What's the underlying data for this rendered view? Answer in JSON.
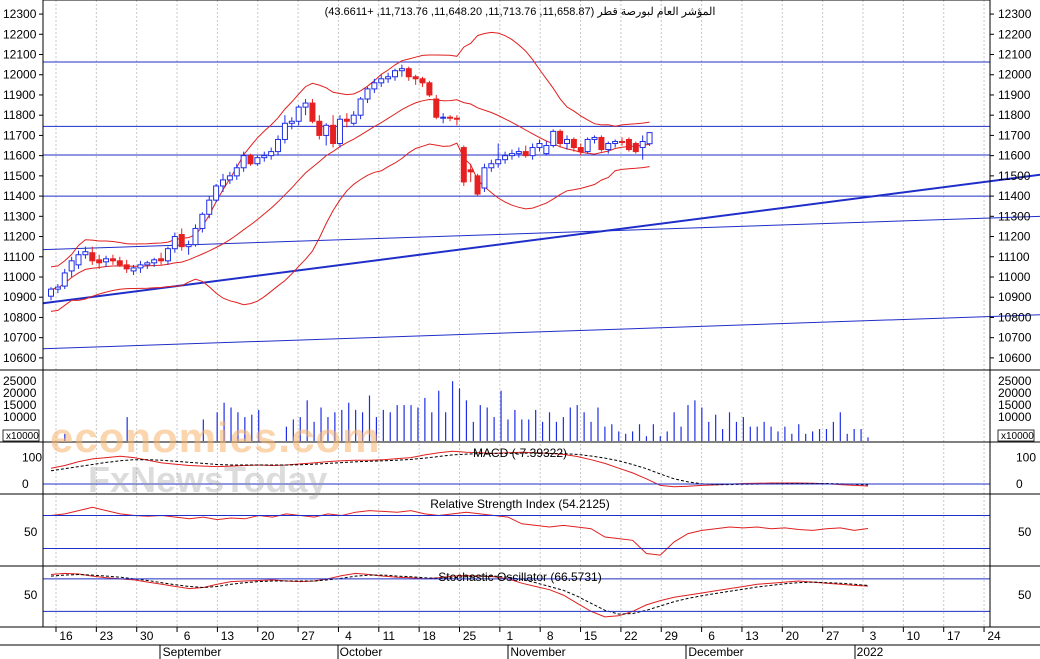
{
  "chart_data": {
    "type": "candlestick",
    "title": "المؤشر العام لبورصة قطر",
    "ohlc_readout": "(11,658.87, 11,713.76, 11,648.20, 11,713.76, +43.6611)",
    "price_axis": {
      "range": [
        10550,
        12330
      ],
      "ticks": [
        "12300",
        "12200",
        "12100",
        "12000",
        "11900",
        "11800",
        "11700",
        "11600",
        "11500",
        "11400",
        "11300",
        "11200",
        "11100",
        "11000",
        "10900",
        "10800",
        "10700",
        "10600"
      ]
    },
    "x_axis": {
      "day_labels": [
        "16",
        "23",
        "30",
        "6",
        "13",
        "20",
        "27",
        "4",
        "11",
        "18",
        "25",
        "1",
        "8",
        "15",
        "22",
        "29",
        "6",
        "13",
        "20",
        "27",
        "3",
        "10",
        "17",
        "24"
      ],
      "month_labels": [
        "September",
        "October",
        "November",
        "December",
        "2022"
      ]
    },
    "horizontal_lines": [
      12063,
      11745,
      11603,
      11400
    ],
    "trend_lines": [
      {
        "name": "upper-trend",
        "from": [
          0,
          10870
        ],
        "to": [
          236,
          11910
        ]
      },
      {
        "name": "mid-trend",
        "from": [
          0,
          11135
        ],
        "to": [
          236,
          11405
        ]
      },
      {
        "name": "lower-trend",
        "from": [
          0,
          10645
        ],
        "to": [
          236,
          10920
        ]
      }
    ],
    "candles": [
      {
        "o": 10905,
        "h": 10950,
        "l": 10885,
        "c": 10940
      },
      {
        "o": 10940,
        "h": 10965,
        "l": 10920,
        "c": 10950
      },
      {
        "o": 10955,
        "h": 11040,
        "l": 10940,
        "c": 11020
      },
      {
        "o": 11030,
        "h": 11100,
        "l": 11000,
        "c": 11080
      },
      {
        "o": 11060,
        "h": 11130,
        "l": 11040,
        "c": 11110
      },
      {
        "o": 11110,
        "h": 11150,
        "l": 11090,
        "c": 11125
      },
      {
        "o": 11120,
        "h": 11150,
        "l": 11060,
        "c": 11080
      },
      {
        "o": 11085,
        "h": 11110,
        "l": 11040,
        "c": 11070
      },
      {
        "o": 11075,
        "h": 11105,
        "l": 11050,
        "c": 11090
      },
      {
        "o": 11090,
        "h": 11110,
        "l": 11060,
        "c": 11080
      },
      {
        "o": 11080,
        "h": 11100,
        "l": 11050,
        "c": 11060
      },
      {
        "o": 11060,
        "h": 11085,
        "l": 11020,
        "c": 11040
      },
      {
        "o": 11030,
        "h": 11060,
        "l": 11010,
        "c": 11045
      },
      {
        "o": 11045,
        "h": 11080,
        "l": 11020,
        "c": 11060
      },
      {
        "o": 11060,
        "h": 11080,
        "l": 11040,
        "c": 11070
      },
      {
        "o": 11070,
        "h": 11095,
        "l": 11050,
        "c": 11085
      },
      {
        "o": 11090,
        "h": 11120,
        "l": 11060,
        "c": 11080
      },
      {
        "o": 11080,
        "h": 11150,
        "l": 11060,
        "c": 11140
      },
      {
        "o": 11140,
        "h": 11220,
        "l": 11120,
        "c": 11200
      },
      {
        "o": 11210,
        "h": 11240,
        "l": 11130,
        "c": 11150
      },
      {
        "o": 11150,
        "h": 11180,
        "l": 11110,
        "c": 11160
      },
      {
        "o": 11160,
        "h": 11260,
        "l": 11150,
        "c": 11240
      },
      {
        "o": 11240,
        "h": 11320,
        "l": 11220,
        "c": 11310
      },
      {
        "o": 11310,
        "h": 11400,
        "l": 11290,
        "c": 11380
      },
      {
        "o": 11380,
        "h": 11460,
        "l": 11370,
        "c": 11450
      },
      {
        "o": 11450,
        "h": 11510,
        "l": 11420,
        "c": 11480
      },
      {
        "o": 11480,
        "h": 11520,
        "l": 11460,
        "c": 11500
      },
      {
        "o": 11500,
        "h": 11560,
        "l": 11480,
        "c": 11540
      },
      {
        "o": 11540,
        "h": 11620,
        "l": 11520,
        "c": 11600
      },
      {
        "o": 11600,
        "h": 11610,
        "l": 11550,
        "c": 11560
      },
      {
        "o": 11560,
        "h": 11600,
        "l": 11550,
        "c": 11590
      },
      {
        "o": 11590,
        "h": 11620,
        "l": 11570,
        "c": 11600
      },
      {
        "o": 11600,
        "h": 11640,
        "l": 11580,
        "c": 11620
      },
      {
        "o": 11620,
        "h": 11700,
        "l": 11600,
        "c": 11680
      },
      {
        "o": 11680,
        "h": 11800,
        "l": 11660,
        "c": 11760
      },
      {
        "o": 11760,
        "h": 11790,
        "l": 11730,
        "c": 11770
      },
      {
        "o": 11770,
        "h": 11850,
        "l": 11750,
        "c": 11840
      },
      {
        "o": 11840,
        "h": 11880,
        "l": 11800,
        "c": 11860
      },
      {
        "o": 11860,
        "h": 11880,
        "l": 11760,
        "c": 11770
      },
      {
        "o": 11770,
        "h": 11800,
        "l": 11680,
        "c": 11700
      },
      {
        "o": 11700,
        "h": 11760,
        "l": 11650,
        "c": 11750
      },
      {
        "o": 11750,
        "h": 11800,
        "l": 11640,
        "c": 11660
      },
      {
        "o": 11660,
        "h": 11800,
        "l": 11640,
        "c": 11780
      },
      {
        "o": 11780,
        "h": 11810,
        "l": 11740,
        "c": 11770
      },
      {
        "o": 11760,
        "h": 11820,
        "l": 11750,
        "c": 11800
      },
      {
        "o": 11800,
        "h": 11890,
        "l": 11780,
        "c": 11880
      },
      {
        "o": 11880,
        "h": 11940,
        "l": 11860,
        "c": 11930
      },
      {
        "o": 11930,
        "h": 11980,
        "l": 11910,
        "c": 11960
      },
      {
        "o": 11960,
        "h": 12000,
        "l": 11940,
        "c": 11980
      },
      {
        "o": 11980,
        "h": 12010,
        "l": 11960,
        "c": 11990
      },
      {
        "o": 11990,
        "h": 12030,
        "l": 11970,
        "c": 12020
      },
      {
        "o": 12020,
        "h": 12050,
        "l": 11990,
        "c": 12030
      },
      {
        "o": 12030,
        "h": 12040,
        "l": 11970,
        "c": 11990
      },
      {
        "o": 11990,
        "h": 12000,
        "l": 11950,
        "c": 11980
      },
      {
        "o": 11980,
        "h": 11990,
        "l": 11940,
        "c": 11960
      },
      {
        "o": 11960,
        "h": 11970,
        "l": 11890,
        "c": 11900
      },
      {
        "o": 11880,
        "h": 11900,
        "l": 11780,
        "c": 11790
      },
      {
        "o": 11790,
        "h": 11810,
        "l": 11760,
        "c": 11790
      },
      {
        "o": 11790,
        "h": 11800,
        "l": 11770,
        "c": 11785
      },
      {
        "o": 11785,
        "h": 11800,
        "l": 11750,
        "c": 11780
      },
      {
        "o": 11640,
        "h": 11650,
        "l": 11450,
        "c": 11470
      },
      {
        "o": 11530,
        "h": 11560,
        "l": 11470,
        "c": 11520
      },
      {
        "o": 11500,
        "h": 11510,
        "l": 11400,
        "c": 11410
      },
      {
        "o": 11440,
        "h": 11560,
        "l": 11420,
        "c": 11540
      },
      {
        "o": 11540,
        "h": 11580,
        "l": 11520,
        "c": 11560
      },
      {
        "o": 11560,
        "h": 11660,
        "l": 11540,
        "c": 11580
      },
      {
        "o": 11580,
        "h": 11620,
        "l": 11560,
        "c": 11600
      },
      {
        "o": 11600,
        "h": 11630,
        "l": 11580,
        "c": 11610
      },
      {
        "o": 11610,
        "h": 11640,
        "l": 11590,
        "c": 11620
      },
      {
        "o": 11620,
        "h": 11650,
        "l": 11590,
        "c": 11600
      },
      {
        "o": 11600,
        "h": 11660,
        "l": 11580,
        "c": 11640
      },
      {
        "o": 11640,
        "h": 11680,
        "l": 11620,
        "c": 11660
      },
      {
        "o": 11610,
        "h": 11670,
        "l": 11600,
        "c": 11650
      },
      {
        "o": 11650,
        "h": 11730,
        "l": 11640,
        "c": 11720
      },
      {
        "o": 11720,
        "h": 11730,
        "l": 11640,
        "c": 11660
      },
      {
        "o": 11660,
        "h": 11700,
        "l": 11630,
        "c": 11680
      },
      {
        "o": 11680,
        "h": 11690,
        "l": 11620,
        "c": 11640
      },
      {
        "o": 11640,
        "h": 11660,
        "l": 11600,
        "c": 11620
      },
      {
        "o": 11620,
        "h": 11690,
        "l": 11610,
        "c": 11680
      },
      {
        "o": 11680,
        "h": 11700,
        "l": 11660,
        "c": 11690
      },
      {
        "o": 11690,
        "h": 11700,
        "l": 11620,
        "c": 11630
      },
      {
        "o": 11630,
        "h": 11670,
        "l": 11610,
        "c": 11660
      },
      {
        "o": 11660,
        "h": 11680,
        "l": 11640,
        "c": 11670
      },
      {
        "o": 11670,
        "h": 11690,
        "l": 11650,
        "c": 11665
      },
      {
        "o": 11680,
        "h": 11690,
        "l": 11620,
        "c": 11630
      },
      {
        "o": 11660,
        "h": 11670,
        "l": 11610,
        "c": 11620
      },
      {
        "o": 11640,
        "h": 11700,
        "l": 11580,
        "c": 11670
      },
      {
        "o": 11658.87,
        "h": 11713.76,
        "l": 11648.2,
        "c": 11713.76
      }
    ],
    "volume": {
      "scale_label": "x10000",
      "ticks": [
        "25000",
        "20000",
        "15000",
        "10000"
      ],
      "bars": [
        0,
        0,
        3000,
        0,
        0,
        0,
        0,
        0,
        0,
        0,
        0,
        10000,
        0,
        0,
        0,
        0,
        0,
        0,
        0,
        0,
        0,
        0,
        9000,
        0,
        12000,
        16000,
        14000,
        12000,
        10000,
        11000,
        13000,
        0,
        0,
        0,
        6000,
        9000,
        10000,
        17000,
        8000,
        14000,
        10000,
        12000,
        13000,
        16000,
        13000,
        12000,
        19000,
        10000,
        13000,
        12000,
        15000,
        15000,
        15000,
        14000,
        18000,
        12000,
        21000,
        12000,
        25000,
        22000,
        17000,
        8000,
        15000,
        14000,
        10000,
        21000,
        9000,
        13000,
        9000,
        9000,
        13000,
        8000,
        12000,
        8000,
        10000,
        14000,
        15000,
        12000,
        8000,
        14000,
        6000,
        7000,
        4000,
        3000,
        4000,
        7000,
        2000,
        7000,
        2000,
        4000,
        12000,
        6000,
        15000,
        17000,
        14000,
        8000,
        11000,
        5000,
        12000,
        8000,
        10000,
        6000,
        6000,
        8000,
        6000,
        4000,
        6000,
        3000,
        7000,
        3000,
        4000,
        5000,
        5000,
        8000,
        12000,
        3000,
        5000,
        5000,
        1500
      ]
    },
    "macd": {
      "label": "MACD (-7.39322)",
      "ticks": [
        "100",
        "0"
      ],
      "macd": [
        60,
        70,
        85,
        95,
        100,
        105,
        100,
        90,
        80,
        75,
        70,
        68,
        66,
        68,
        70,
        72,
        70,
        72,
        76,
        80,
        85,
        88,
        90,
        90,
        92,
        96,
        100,
        110,
        118,
        124,
        120,
        118,
        116,
        118,
        120,
        118,
        116,
        112,
        104,
        92,
        78,
        60,
        42,
        20,
        -5,
        -10,
        -8,
        -5,
        -3,
        0,
        2,
        3,
        4,
        4,
        4,
        3,
        1,
        -2,
        -5,
        -7.4
      ],
      "signal": [
        50,
        58,
        66,
        74,
        82,
        88,
        92,
        92,
        90,
        86,
        82,
        78,
        74,
        72,
        72,
        72,
        72,
        72,
        73,
        75,
        78,
        81,
        84,
        86,
        88,
        90,
        93,
        98,
        104,
        110,
        113,
        115,
        116,
        116,
        117,
        117,
        116,
        115,
        112,
        106,
        98,
        88,
        74,
        58,
        38,
        20,
        8,
        1,
        -2,
        -2,
        -1,
        0,
        1,
        2,
        2,
        2,
        2,
        1,
        -1,
        -3
      ]
    },
    "rsi": {
      "label": "Relative Strength Index (54.2125)",
      "ticks": [
        "50"
      ],
      "levels": [
        70,
        30
      ],
      "values": [
        70,
        72,
        76,
        80,
        76,
        72,
        70,
        69,
        70,
        68,
        66,
        68,
        65,
        67,
        66,
        70,
        68,
        72,
        70,
        68,
        72,
        70,
        74,
        76,
        75,
        74,
        76,
        72,
        70,
        72,
        74,
        72,
        70,
        68,
        60,
        58,
        56,
        58,
        56,
        54,
        44,
        42,
        40,
        24,
        22,
        38,
        48,
        52,
        54,
        56,
        55,
        56,
        54,
        55,
        53,
        52,
        54,
        55,
        52,
        54.2
      ]
    },
    "stochastic": {
      "label": "Stochastic Oscillator (66.5731)",
      "ticks": [
        "50"
      ],
      "levels": [
        80,
        20
      ],
      "k": [
        88,
        90,
        89,
        85,
        82,
        80,
        78,
        74,
        70,
        66,
        62,
        64,
        70,
        75,
        76,
        77,
        78,
        76,
        75,
        76,
        80,
        86,
        90,
        88,
        85,
        83,
        82,
        80,
        82,
        85,
        86,
        85,
        84,
        80,
        72,
        66,
        60,
        50,
        35,
        20,
        10,
        12,
        20,
        32,
        40,
        46,
        50,
        54,
        58,
        62,
        66,
        70,
        72,
        74,
        76,
        74,
        72,
        70,
        68,
        66.6
      ],
      "d": [
        85,
        87,
        88,
        87,
        85,
        83,
        80,
        77,
        73,
        69,
        66,
        64,
        66,
        70,
        73,
        75,
        76,
        76,
        76,
        76,
        78,
        81,
        85,
        87,
        87,
        85,
        84,
        82,
        81,
        82,
        84,
        85,
        85,
        83,
        79,
        73,
        66,
        59,
        48,
        35,
        22,
        15,
        16,
        22,
        30,
        38,
        44,
        49,
        53,
        57,
        61,
        65,
        68,
        71,
        73,
        74,
        73,
        72,
        70,
        68
      ]
    },
    "watermarks": [
      "economies.com",
      "FxNewsToday"
    ],
    "colors": {
      "up_candle": "#1f2ee6",
      "down_candle": "#e62020",
      "band": "#e02020",
      "line": "#1f2ec8",
      "grid": "#c8c8c8"
    }
  }
}
